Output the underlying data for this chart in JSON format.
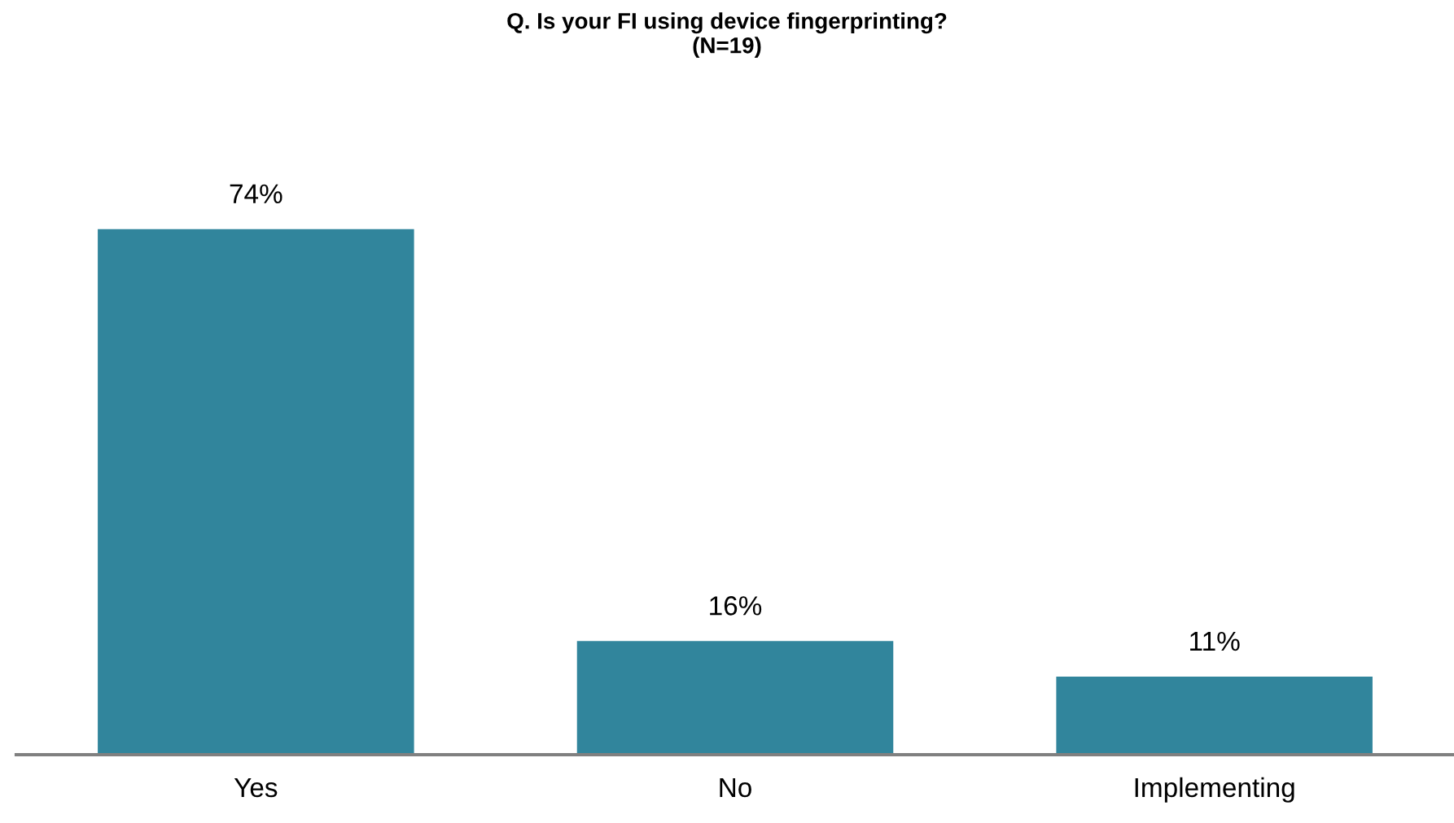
{
  "chart_data": {
    "type": "bar",
    "title": "Q. Is your FI using device fingerprinting?\n(N=19)",
    "categories": [
      "Yes",
      "No",
      "Implementing"
    ],
    "values": [
      74,
      16,
      11
    ],
    "value_labels": [
      "74%",
      "16%",
      "11%"
    ],
    "color": "#31859c",
    "grid": false,
    "legend": false
  }
}
